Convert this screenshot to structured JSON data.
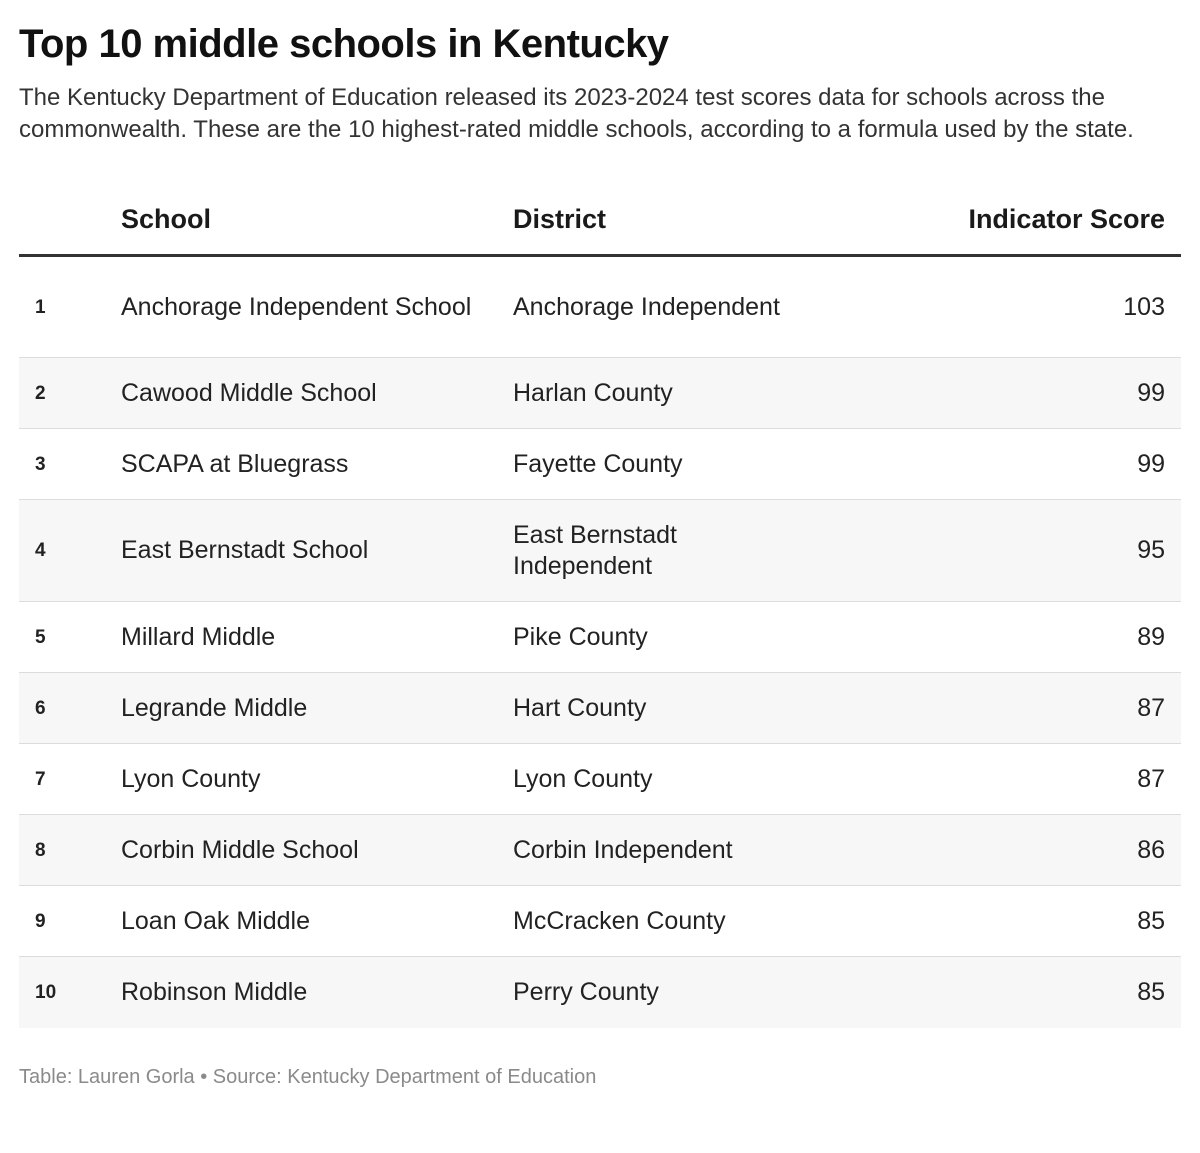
{
  "header": {
    "title": "Top 10 middle schools in Kentucky",
    "subtitle": "The Kentucky Department of Education released its 2023-2024 test scores data for schools across the commonwealth. These are the 10 highest-rated middle schools, according to a formula used by the state."
  },
  "chart_data": {
    "type": "table",
    "columns": [
      "",
      "School",
      "District",
      "Indicator Score"
    ],
    "rows": [
      {
        "rank": "1",
        "school": "Anchorage Independent School",
        "district": "Anchorage Independent",
        "score": 103
      },
      {
        "rank": "2",
        "school": "Cawood Middle School",
        "district": "Harlan County",
        "score": 99
      },
      {
        "rank": "3",
        "school": "SCAPA at Bluegrass",
        "district": "Fayette County",
        "score": 99
      },
      {
        "rank": "4",
        "school": "East Bernstadt School",
        "district": "East Bernstadt Independent",
        "score": 95
      },
      {
        "rank": "5",
        "school": "Millard Middle",
        "district": "Pike County",
        "score": 89
      },
      {
        "rank": "6",
        "school": "Legrande Middle",
        "district": "Hart County",
        "score": 87
      },
      {
        "rank": "7",
        "school": "Lyon County",
        "district": "Lyon County",
        "score": 87
      },
      {
        "rank": "8",
        "school": "Corbin Middle School",
        "district": "Corbin Independent",
        "score": 86
      },
      {
        "rank": "9",
        "school": "Loan Oak Middle",
        "district": "McCracken County",
        "score": 85
      },
      {
        "rank": "10",
        "school": "Robinson Middle",
        "district": "Perry County",
        "score": 85
      }
    ]
  },
  "footer": {
    "credit": "Table: Lauren Gorla • Source: Kentucky Department of Education"
  }
}
